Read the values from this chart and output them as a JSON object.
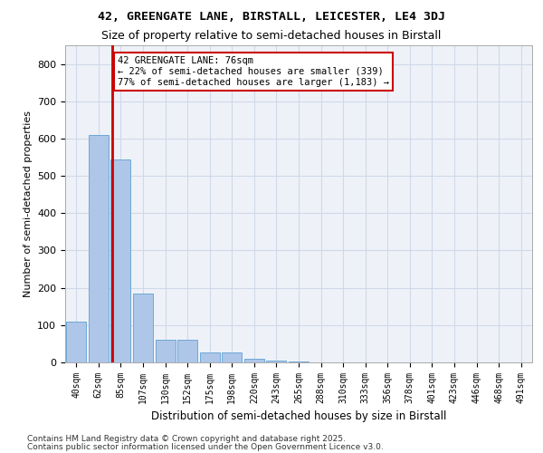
{
  "title1": "42, GREENGATE LANE, BIRSTALL, LEICESTER, LE4 3DJ",
  "title2": "Size of property relative to semi-detached houses in Birstall",
  "xlabel": "Distribution of semi-detached houses by size in Birstall",
  "ylabel": "Number of semi-detached properties",
  "bin_labels": [
    "40sqm",
    "62sqm",
    "85sqm",
    "107sqm",
    "130sqm",
    "152sqm",
    "175sqm",
    "198sqm",
    "220sqm",
    "243sqm",
    "265sqm",
    "288sqm",
    "310sqm",
    "333sqm",
    "356sqm",
    "378sqm",
    "401sqm",
    "423sqm",
    "446sqm",
    "468sqm",
    "491sqm"
  ],
  "values": [
    110,
    610,
    545,
    185,
    60,
    60,
    27,
    27,
    10,
    5,
    3,
    1,
    0,
    0,
    0,
    0,
    0,
    0,
    0,
    0,
    0
  ],
  "bar_color": "#aec6e8",
  "bar_edge_color": "#6fa8d6",
  "property_sqm": 76,
  "property_label": "42 GREENGATE LANE: 76sqm",
  "smaller_pct": "22%",
  "smaller_count": "339",
  "larger_pct": "77%",
  "larger_count": "1,183",
  "vline_color": "#cc0000",
  "annotation_box_color": "#cc0000",
  "grid_color": "#d0d8e8",
  "bg_color": "#eef2f8",
  "ylim": [
    0,
    850
  ],
  "yticks": [
    0,
    100,
    200,
    300,
    400,
    500,
    600,
    700,
    800
  ],
  "footer1": "Contains HM Land Registry data © Crown copyright and database right 2025.",
  "footer2": "Contains public sector information licensed under the Open Government Licence v3.0."
}
